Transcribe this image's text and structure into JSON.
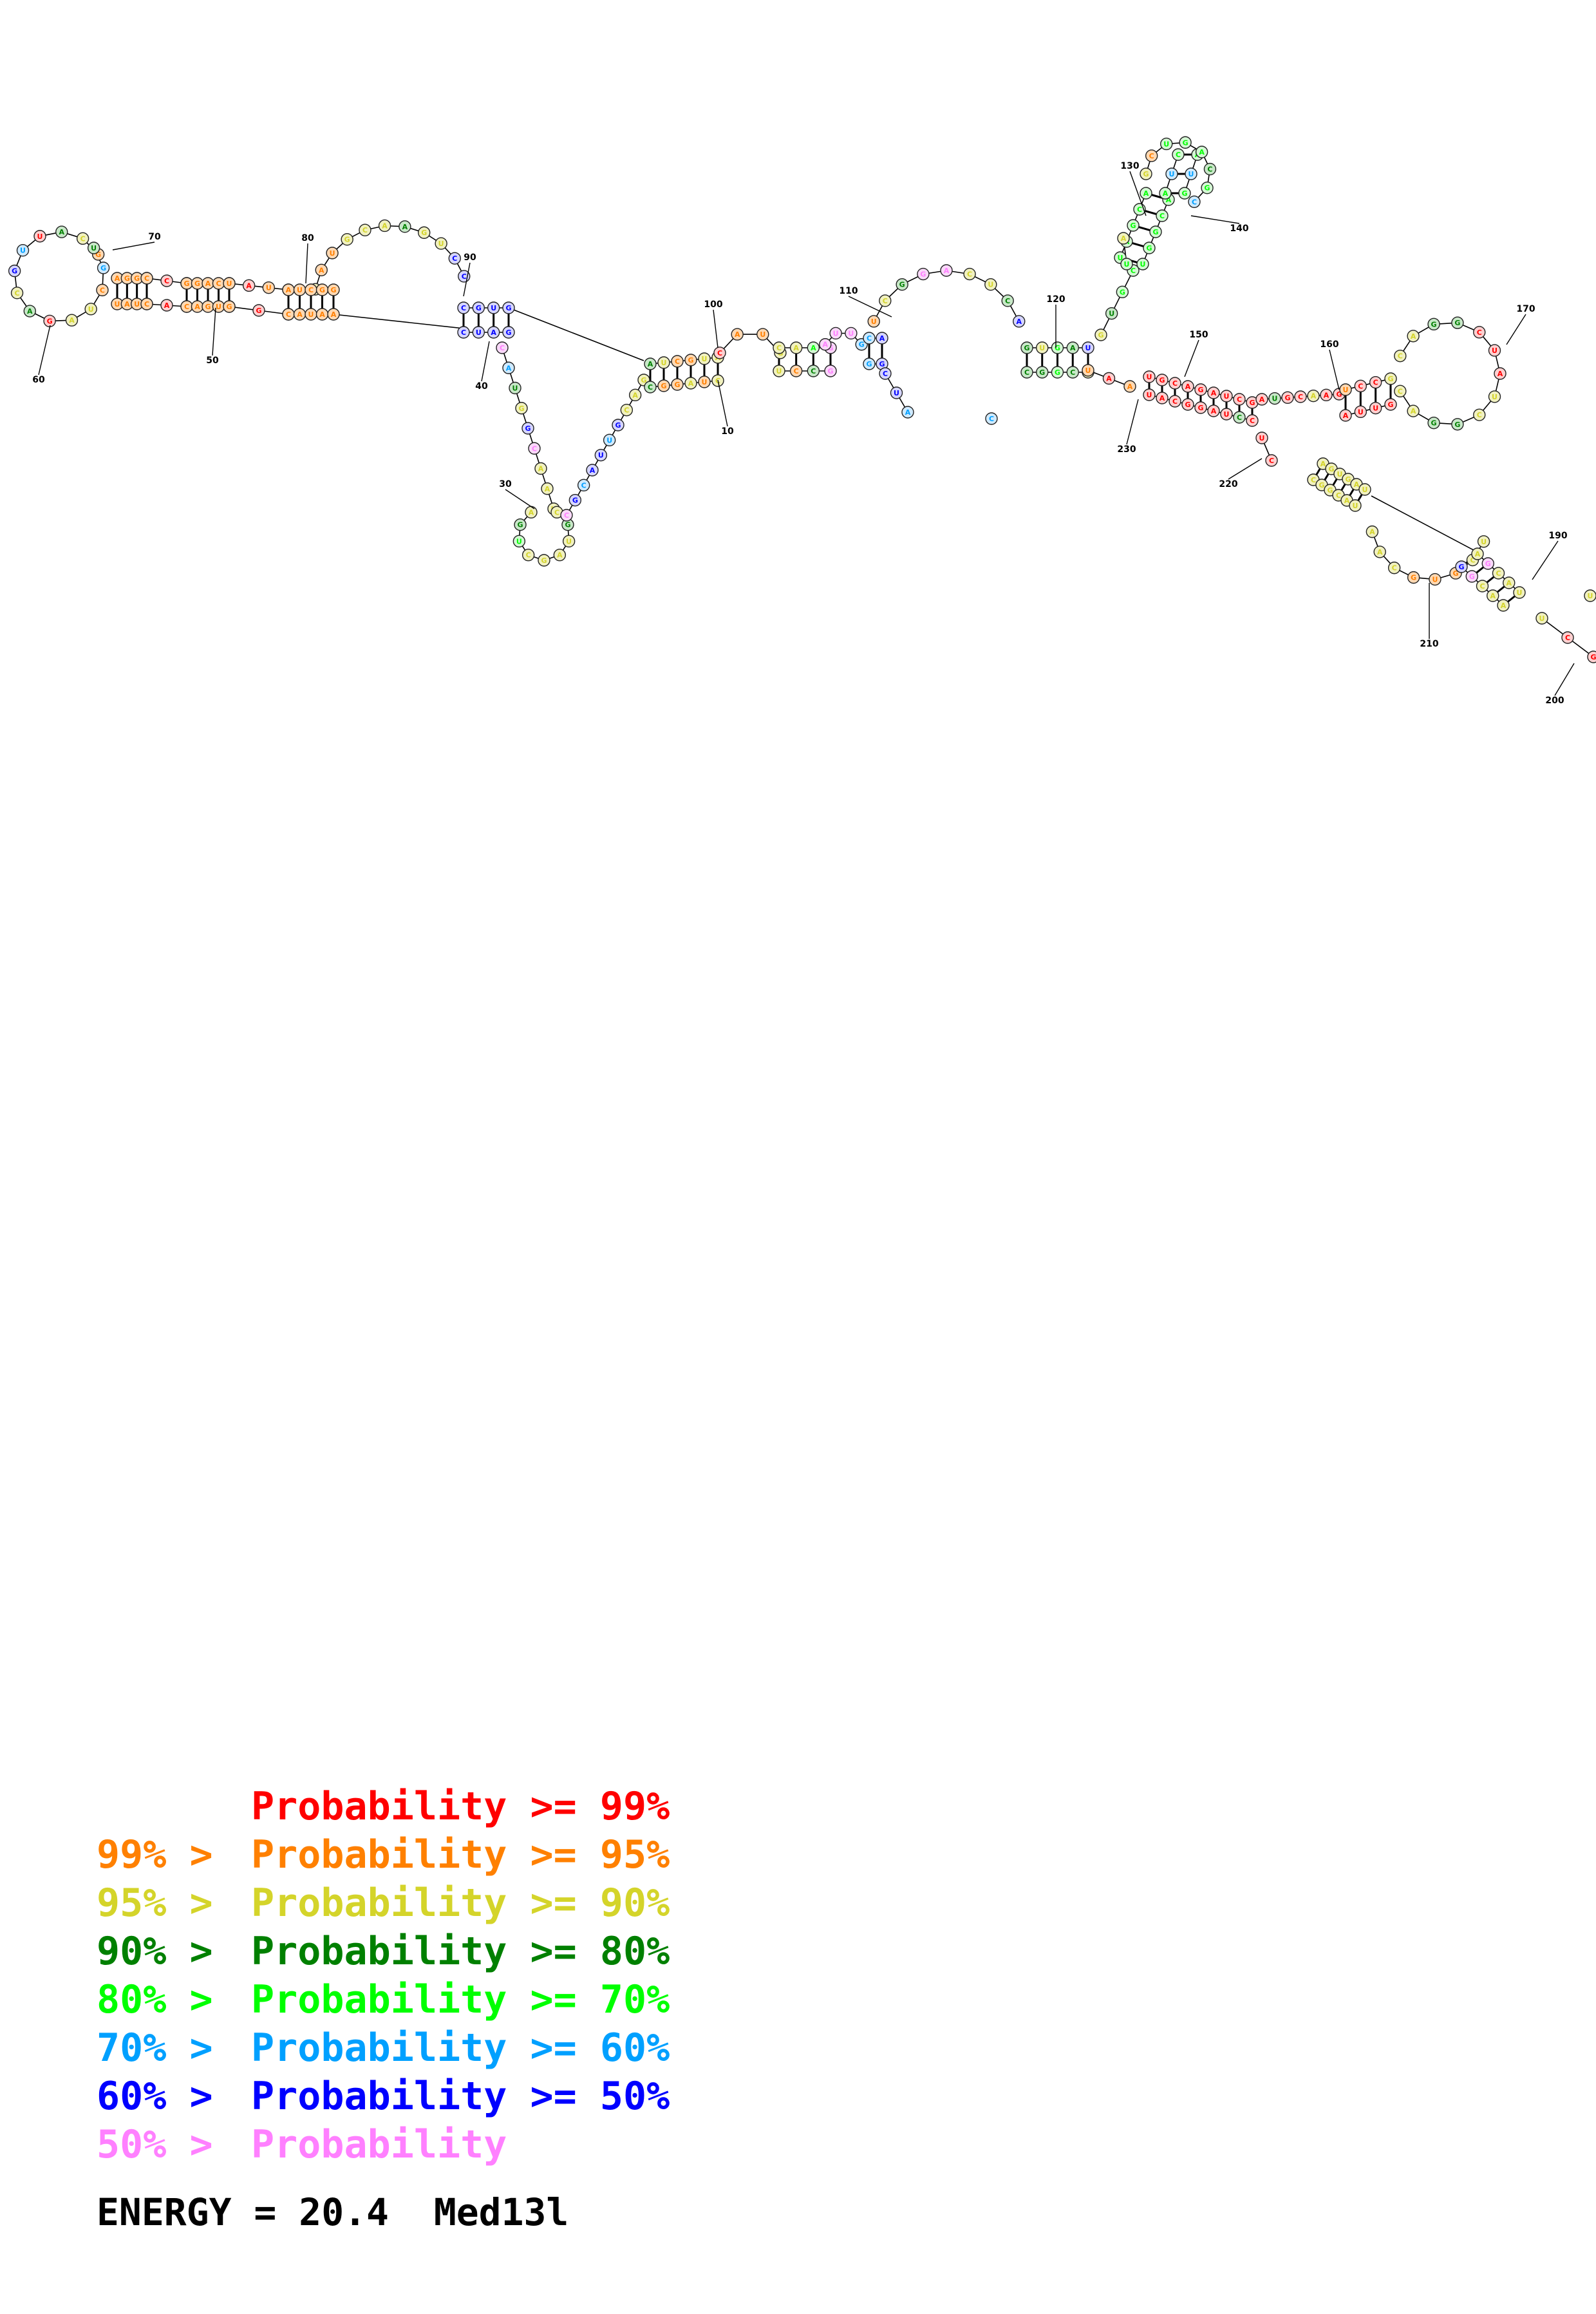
{
  "structure": {
    "molecule": "Med13l",
    "energy_label": "ENERGY =",
    "energy_value": "20.4",
    "position_labels": [
      "10",
      "30",
      "40",
      "50",
      "60",
      "70",
      "80",
      "90",
      "100",
      "110",
      "120",
      "130",
      "140",
      "150",
      "160",
      "170",
      "190",
      "200",
      "210",
      "220",
      "230"
    ]
  },
  "legend": {
    "classes": [
      {
        "left": "",
        "right": "Probability >= 99%",
        "color": "#ff0000"
      },
      {
        "left": "99% >",
        "right": "Probability >= 95%",
        "color": "#ff8000"
      },
      {
        "left": "95% >",
        "right": "Probability >= 90%",
        "color": "#d4d42a"
      },
      {
        "left": "90% >",
        "right": "Probability >= 80%",
        "color": "#008000"
      },
      {
        "left": "80% >",
        "right": "Probability >= 70%",
        "color": "#00ff00"
      },
      {
        "left": "70% >",
        "right": "Probability >= 60%",
        "color": "#00a0ff"
      },
      {
        "left": "60% >",
        "right": "Probability >= 50%",
        "color": "#0000ff"
      },
      {
        "left": "50% >",
        "right": "Probability",
        "color": "#ff80ff"
      }
    ]
  },
  "icons": {
    "diagram": "rna-secondary-structure-diagram"
  }
}
